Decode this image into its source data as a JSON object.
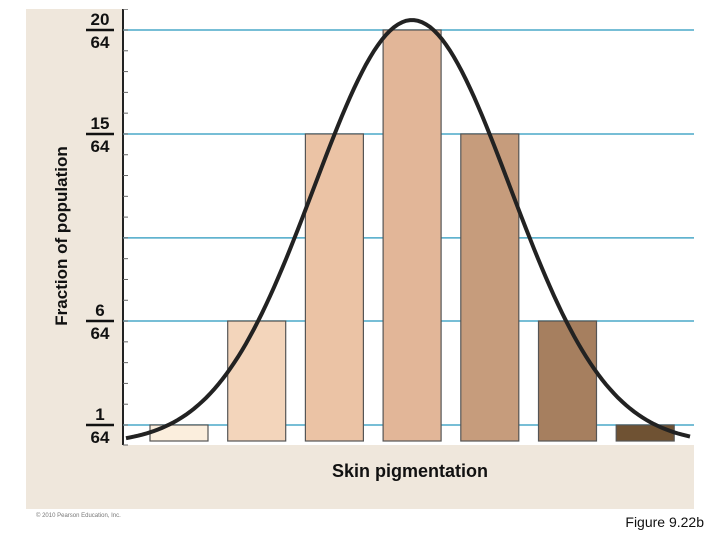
{
  "chart_data": {
    "type": "bar",
    "title": "",
    "xlabel": "Skin pigmentation",
    "ylabel": "Fraction of population",
    "categories": [
      "",
      "",
      "",
      "",
      "",
      "",
      ""
    ],
    "values": [
      1,
      6,
      15,
      20,
      15,
      6,
      1
    ],
    "value_denominator": 64,
    "yticks": [
      {
        "value": 1,
        "num": "1",
        "den": "64"
      },
      {
        "value": 6,
        "num": "6",
        "den": "64"
      },
      {
        "value": 15,
        "num": "15",
        "den": "64"
      },
      {
        "value": 20,
        "num": "20",
        "den": "64"
      }
    ],
    "gridlines": [
      1,
      6,
      10,
      15,
      20
    ],
    "ylim": [
      0,
      21
    ],
    "bar_colors": [
      "#fbeedd",
      "#f3d5bb",
      "#ebc3a5",
      "#e2b698",
      "#c69c7c",
      "#a67f5f",
      "#6f5233"
    ],
    "curve": "normal distribution",
    "grid": true
  },
  "copyright": "© 2010 Pearson Education, Inc.",
  "caption": "Figure 9.22b"
}
